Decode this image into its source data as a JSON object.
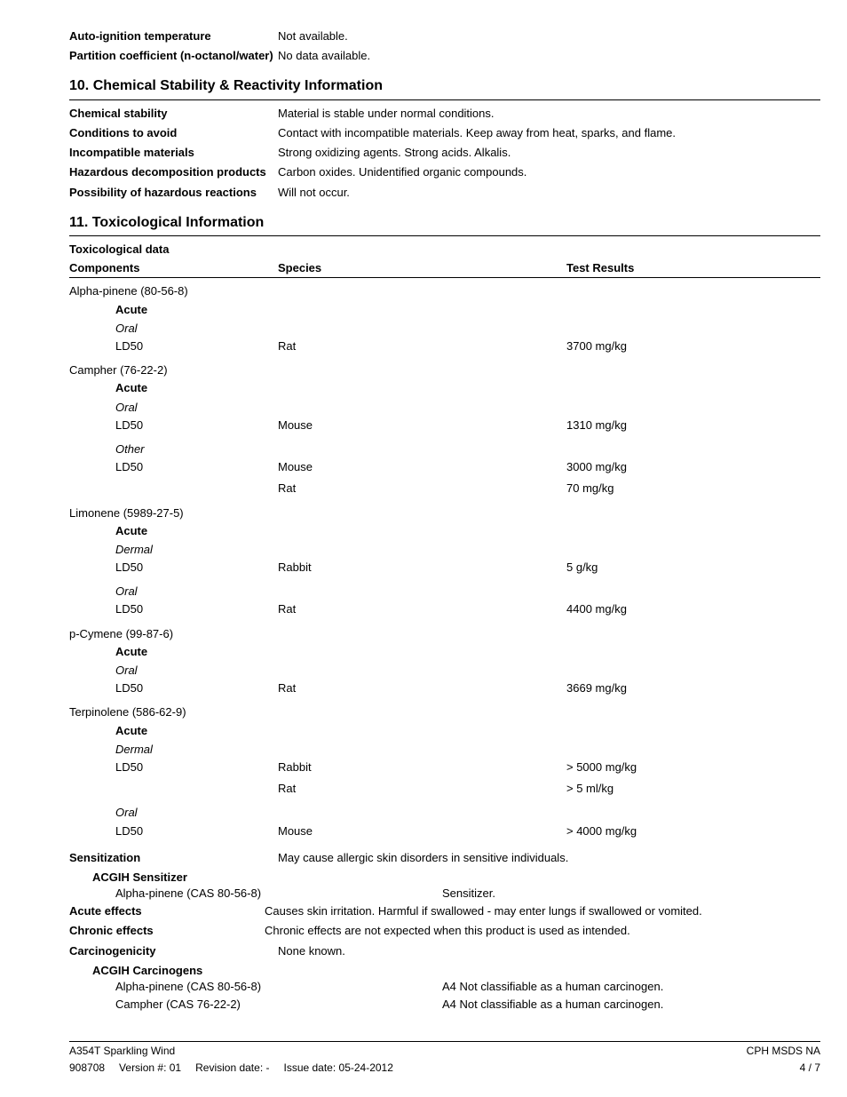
{
  "top_props": [
    {
      "key": "Auto-ignition temperature",
      "val": "Not available."
    },
    {
      "key": "Partition coefficient (n-octanol/water)",
      "val": "No data available."
    }
  ],
  "section10": {
    "title": "10. Chemical Stability & Reactivity Information",
    "rows": [
      {
        "key": "Chemical stability",
        "val": "Material is stable under normal conditions."
      },
      {
        "key": "Conditions to avoid",
        "val": "Contact with incompatible materials. Keep away from heat, sparks, and flame."
      },
      {
        "key": "Incompatible materials",
        "val": "Strong oxidizing agents. Strong acids. Alkalis."
      },
      {
        "key": "Hazardous decomposition products",
        "val": "Carbon oxides. Unidentified organic compounds."
      },
      {
        "key": "Possibility of hazardous reactions",
        "val": "Will not occur."
      }
    ]
  },
  "section11": {
    "title": "11. Toxicological Information",
    "toxdata_label": "Toxicological data",
    "headers": {
      "comp": "Components",
      "species": "Species",
      "results": "Test Results"
    },
    "components": [
      {
        "name": "Alpha-pinene (80-56-8)",
        "category": "Acute",
        "routes": [
          {
            "route": "Oral",
            "rows": [
              {
                "measure": "LD50",
                "species": "Rat",
                "result": "3700 mg/kg"
              }
            ]
          }
        ]
      },
      {
        "name": "Campher (76-22-2)",
        "category": "Acute",
        "routes": [
          {
            "route": "Oral",
            "rows": [
              {
                "measure": "LD50",
                "species": "Mouse",
                "result": "1310 mg/kg"
              }
            ]
          },
          {
            "route": "Other",
            "rows": [
              {
                "measure": "LD50",
                "species": "Mouse",
                "result": "3000 mg/kg"
              },
              {
                "measure": "",
                "species": "Rat",
                "result": "70 mg/kg"
              }
            ]
          }
        ]
      },
      {
        "name": "Limonene (5989-27-5)",
        "category": "Acute",
        "routes": [
          {
            "route": "Dermal",
            "rows": [
              {
                "measure": "LD50",
                "species": "Rabbit",
                "result": "5 g/kg"
              }
            ]
          },
          {
            "route": "Oral",
            "rows": [
              {
                "measure": "LD50",
                "species": "Rat",
                "result": "4400 mg/kg"
              }
            ]
          }
        ]
      },
      {
        "name": "p-Cymene (99-87-6)",
        "category": "Acute",
        "routes": [
          {
            "route": "Oral",
            "rows": [
              {
                "measure": "LD50",
                "species": "Rat",
                "result": "3669 mg/kg"
              }
            ]
          }
        ]
      },
      {
        "name": "Terpinolene (586-62-9)",
        "category": "Acute",
        "routes": [
          {
            "route": "Dermal",
            "rows": [
              {
                "measure": "LD50",
                "species": "Rabbit",
                "result": "> 5000 mg/kg"
              },
              {
                "measure": "",
                "species": "Rat",
                "result": "> 5 ml/kg"
              }
            ]
          },
          {
            "route": "Oral",
            "rows": [
              {
                "measure": "LD50",
                "species": "Mouse",
                "result": "> 4000 mg/kg"
              }
            ]
          }
        ]
      }
    ],
    "sensitization": {
      "key": "Sensitization",
      "val": "May cause allergic skin disorders in sensitive individuals."
    },
    "acgih_sens_label": "ACGIH Sensitizer",
    "acgih_sens_rows": [
      {
        "name": "Alpha-pinene (CAS 80-56-8)",
        "val": "Sensitizer."
      }
    ],
    "acute_effects": {
      "key": "Acute effects",
      "val": "Causes skin irritation. Harmful if swallowed - may enter lungs if swallowed or vomited."
    },
    "chronic_effects": {
      "key": "Chronic effects",
      "val": "Chronic effects are not expected when this product is used as intended."
    },
    "carcinogenicity": {
      "key": "Carcinogenicity",
      "val": "None known."
    },
    "acgih_carc_label": "ACGIH Carcinogens",
    "acgih_carc_rows": [
      {
        "name": "Alpha-pinene (CAS 80-56-8)",
        "val": "A4 Not classifiable as a human carcinogen."
      },
      {
        "name": "Campher (CAS 76-22-2)",
        "val": "A4 Not classifiable as a human carcinogen."
      }
    ]
  },
  "footer": {
    "left1": "A354T  Sparkling Wind",
    "right1": "CPH MSDS NA",
    "id": "908708",
    "version": "Version #: 01",
    "revdate": "Revision date: -",
    "issuedate": "Issue date: 05-24-2012",
    "page": "4 / 7"
  }
}
